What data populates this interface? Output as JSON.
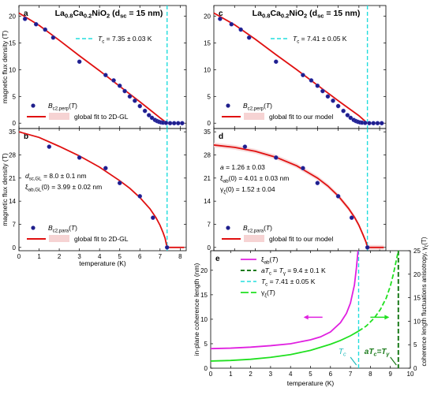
{
  "chart_data": [
    {
      "panel": "a",
      "type": "scatter",
      "title": "La0.8Ca0.2NiO2 (dsc = 15 nm)",
      "xlabel": "",
      "ylabel": "magnetic flux density (T)",
      "xlim": [
        0,
        8.3
      ],
      "ylim": [
        -1,
        22
      ],
      "xticks": [
        0,
        1,
        2,
        3,
        4,
        5,
        6,
        7,
        8
      ],
      "yticks": [
        0,
        5,
        10,
        15,
        20
      ],
      "tc_label": "T_c = 7.35 ± 0.03 K",
      "tc": 7.35,
      "legend": [
        "B_c2,perp(T)",
        "global fit to 2D-GL"
      ],
      "series": [
        {
          "name": "B_c2,perp(T)",
          "kind": "points",
          "color": "#1f1f8c",
          "x": [
            0.3,
            0.85,
            1.3,
            1.7,
            3.0,
            4.3,
            4.7,
            5.0,
            5.25,
            5.5,
            5.75,
            6.0,
            6.25,
            6.45,
            6.6,
            6.75,
            6.85,
            6.95,
            7.05,
            7.15,
            7.3,
            7.5,
            7.7,
            7.9,
            8.1
          ],
          "y": [
            19.5,
            18.5,
            17.5,
            16,
            11.5,
            9,
            8,
            7,
            6,
            5,
            4.2,
            3.2,
            2.3,
            1.5,
            1.0,
            0.6,
            0.4,
            0.25,
            0.15,
            0.1,
            0.05,
            0.0,
            0.0,
            0.0,
            0.0
          ]
        },
        {
          "name": "global fit to 2D-GL",
          "kind": "line",
          "color": "#e01010",
          "x": [
            0,
            1,
            2,
            3,
            4,
            5,
            6,
            6.5,
            7,
            7.35,
            8.2
          ],
          "y": [
            20.6,
            18.3,
            15.5,
            12.6,
            9.8,
            6.9,
            4.0,
            2.5,
            1.0,
            0.0,
            0.0
          ]
        }
      ]
    },
    {
      "panel": "b",
      "type": "scatter",
      "xlabel": "temperature (K)",
      "ylabel": "magnetic flux density (T)",
      "xlim": [
        0,
        8.3
      ],
      "ylim": [
        -1,
        36
      ],
      "xticks": [
        0,
        1,
        2,
        3,
        4,
        5,
        6,
        7,
        8
      ],
      "yticks": [
        0,
        7,
        14,
        21,
        28,
        35
      ],
      "tc": 7.35,
      "params": [
        "d_sc,GL = 8.0 ± 0.1 nm",
        "ξ_ab,GL(0) = 3.99 ± 0.02 nm"
      ],
      "legend": [
        "B_c2,para(T)",
        "global fit to 2D-GL"
      ],
      "series": [
        {
          "name": "B_c2,para(T)",
          "kind": "points",
          "color": "#1f1f8c",
          "x": [
            1.5,
            3.0,
            4.3,
            5.0,
            6.0,
            6.65,
            7.35
          ],
          "y": [
            30.5,
            27.2,
            24,
            19.5,
            15.5,
            9,
            0
          ]
        },
        {
          "name": "global fit to 2D-GL",
          "kind": "line",
          "color": "#e01010",
          "x": [
            0,
            1,
            2,
            3,
            4,
            5,
            5.5,
            6,
            6.5,
            6.8,
            7.0,
            7.15,
            7.25,
            7.35,
            8.2
          ],
          "y": [
            35,
            33.3,
            30.6,
            27.7,
            24.3,
            20.2,
            17.9,
            15.1,
            11.7,
            9.0,
            6.7,
            4.5,
            2.8,
            0,
            0
          ]
        }
      ]
    },
    {
      "panel": "c",
      "type": "scatter",
      "title": "La0.8Ca0.2NiO2 (dsc = 15 nm)",
      "xlabel": "",
      "ylabel": "",
      "xlim": [
        0,
        8.3
      ],
      "ylim": [
        -1,
        22
      ],
      "xticks": [
        0,
        1,
        2,
        3,
        4,
        5,
        6,
        7,
        8
      ],
      "yticks": [
        0,
        5,
        10,
        15,
        20
      ],
      "tc_label": "T_c = 7.41 ± 0.05 K",
      "tc": 7.41,
      "legend": [
        "B_c2,perp(T)",
        "global fit to our model"
      ],
      "series": [
        {
          "name": "B_c2,perp(T)",
          "kind": "points",
          "color": "#1f1f8c",
          "x": [
            0.3,
            0.85,
            1.3,
            1.7,
            3.0,
            4.3,
            4.7,
            5.0,
            5.25,
            5.5,
            5.75,
            6.0,
            6.25,
            6.45,
            6.6,
            6.75,
            6.85,
            6.95,
            7.05,
            7.15,
            7.3,
            7.5,
            7.7,
            7.9,
            8.1
          ],
          "y": [
            19.5,
            18.5,
            17.5,
            16,
            11.5,
            9,
            8,
            7,
            6,
            5,
            4.2,
            3.2,
            2.3,
            1.5,
            1.0,
            0.6,
            0.4,
            0.25,
            0.15,
            0.1,
            0.05,
            0.0,
            0.0,
            0.0,
            0.0
          ]
        },
        {
          "name": "global fit to our model",
          "kind": "line",
          "color": "#e01010",
          "x": [
            0,
            1,
            2,
            3,
            4,
            5,
            6,
            6.5,
            7,
            7.2,
            7.41,
            8.2
          ],
          "y": [
            20.6,
            18.4,
            15.7,
            12.8,
            10.0,
            7.1,
            4.2,
            2.8,
            1.4,
            0.7,
            0.0,
            0.0
          ]
        }
      ]
    },
    {
      "panel": "d",
      "type": "scatter",
      "xlabel": "",
      "ylabel": "",
      "xlim": [
        0,
        8.3
      ],
      "ylim": [
        -1,
        36
      ],
      "xticks": [
        0,
        1,
        2,
        3,
        4,
        5,
        6,
        7,
        8
      ],
      "yticks": [
        0,
        7,
        14,
        21,
        28,
        35
      ],
      "tc": 7.41,
      "params": [
        "a = 1.26 ± 0.03",
        "ξ_ab(0) = 4.01 ± 0.03 nm",
        "γ_ξ(0) = 1.52 ± 0.04"
      ],
      "legend": [
        "B_c2,para(T)",
        "global fit to our model"
      ],
      "series": [
        {
          "name": "B_c2,para(T)",
          "kind": "points",
          "color": "#1f1f8c",
          "x": [
            1.5,
            3.0,
            4.3,
            5.0,
            6.0,
            6.65,
            7.41
          ],
          "y": [
            30.5,
            27.2,
            24,
            19.5,
            15.5,
            9,
            0
          ]
        },
        {
          "name": "global fit to our model",
          "kind": "line",
          "color": "#e01010",
          "x": [
            0,
            1,
            2,
            3,
            4,
            5,
            5.5,
            6,
            6.5,
            6.8,
            7.0,
            7.2,
            7.35,
            7.41,
            8.2
          ],
          "y": [
            31,
            30.3,
            29.1,
            27.3,
            24.7,
            21.0,
            18.6,
            15.6,
            11.8,
            9.0,
            6.7,
            3.8,
            1.5,
            0,
            0
          ]
        }
      ]
    },
    {
      "panel": "e",
      "type": "line",
      "xlabel": "temperature (K)",
      "ylabel": "in-plane coherence length (nm)",
      "ylabel_right": "coherence length fluctuations anisotropy, γ_ξ(T)",
      "xlim": [
        0,
        10
      ],
      "ylim": [
        0,
        24
      ],
      "ylim_right": [
        0,
        25
      ],
      "xticks": [
        0,
        1,
        2,
        3,
        4,
        5,
        6,
        7,
        8,
        9,
        10
      ],
      "yticks": [
        0,
        5,
        10,
        15,
        20
      ],
      "yticks_right": [
        0,
        5,
        10,
        15,
        20,
        25
      ],
      "legend": [
        "ξ_ab(T)",
        "aT_c = T_γ = 9.4 ± 0.1 K",
        "T_c = 7.41 ± 0.05 K",
        "γ_ξ(T)"
      ],
      "annotations": [
        "T_c",
        "aT_c = T_γ"
      ],
      "series": [
        {
          "name": "ξ_ab(T)",
          "kind": "line",
          "axis": "left",
          "color": "#e020e0",
          "x": [
            0,
            1,
            2,
            3,
            4,
            5,
            5.5,
            6,
            6.5,
            6.8,
            7.0,
            7.2,
            7.3,
            7.38
          ],
          "y": [
            4.0,
            4.1,
            4.3,
            4.6,
            5.0,
            5.8,
            6.4,
            7.4,
            9.3,
            11.2,
            13.3,
            17.0,
            20.5,
            24
          ]
        },
        {
          "name": "γ_ξ(T)",
          "kind": "line",
          "axis": "right",
          "color": "#20e020",
          "x": [
            0,
            1,
            2,
            3,
            4,
            5,
            6,
            6.5,
            7,
            7.41
          ],
          "y": [
            1.52,
            1.65,
            1.9,
            2.3,
            2.9,
            3.8,
            5.1,
            5.9,
            6.9,
            7.9
          ]
        },
        {
          "name": "γ_ξ(T) above T_c",
          "kind": "dashed",
          "axis": "right",
          "color": "#20e020",
          "x": [
            7.41,
            7.8,
            8.2,
            8.5,
            8.8,
            9.0,
            9.15,
            9.3,
            9.4
          ],
          "y": [
            7.9,
            9.0,
            10.7,
            12.5,
            15.0,
            17.5,
            20.0,
            23.0,
            25.0
          ]
        }
      ],
      "vlines": [
        {
          "name": "T_c",
          "x": 7.41,
          "color": "#22dddd"
        },
        {
          "name": "aT_c = T_γ",
          "x": 9.4,
          "color": "#1a7a1a"
        }
      ]
    }
  ],
  "labels": {
    "panel_a": "a",
    "panel_b": "b",
    "panel_c": "c",
    "panel_d": "d",
    "panel_e": "e"
  }
}
